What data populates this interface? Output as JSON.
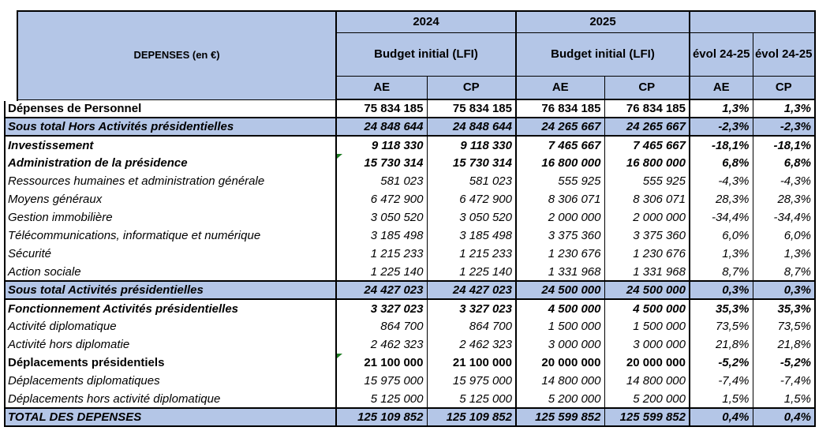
{
  "header": {
    "col_label": "DEPENSES (en €)",
    "year_2024": "2024",
    "year_2025": "2025",
    "budget_2024": "Budget initial (LFI)",
    "budget_2025": "Budget initial (LFI)",
    "evol_ae": "évol 24-25",
    "evol_cp": "évol 24-25",
    "sub": [
      "AE",
      "CP",
      "AE",
      "CP",
      "AE",
      "CP"
    ]
  },
  "rows": [
    {
      "label": "Dépenses de Personnel",
      "style": "bold",
      "flag": false,
      "values": [
        "75 834 185",
        "75 834 185",
        "76 834 185",
        "76 834 185",
        "1,3%",
        "1,3%"
      ]
    },
    {
      "label": "Sous total Hors Activités présidentielles",
      "style": "subtotal",
      "flag": false,
      "values": [
        "24 848 644",
        "24 848 644",
        "24 265 667",
        "24 265 667",
        "-2,3%",
        "-2,3%"
      ]
    },
    {
      "label": "Investissement",
      "style": "bold-italic",
      "flag": false,
      "values": [
        "9 118 330",
        "9 118 330",
        "7 465 667",
        "7 465 667",
        "-18,1%",
        "-18,1%"
      ]
    },
    {
      "label": "Administration de la présidence",
      "style": "bold-italic",
      "flag": true,
      "values": [
        "15 730 314",
        "15 730 314",
        "16 800 000",
        "16 800 000",
        "6,8%",
        "6,8%"
      ]
    },
    {
      "label": "Ressources humaines et administration générale",
      "style": "italic",
      "flag": false,
      "values": [
        "581 023",
        "581 023",
        "555 925",
        "555 925",
        "-4,3%",
        "-4,3%"
      ]
    },
    {
      "label": "Moyens généraux",
      "style": "italic",
      "flag": false,
      "values": [
        "6 472 900",
        "6 472 900",
        "8 306 071",
        "8 306 071",
        "28,3%",
        "28,3%"
      ]
    },
    {
      "label": "Gestion immobilière",
      "style": "italic",
      "flag": false,
      "values": [
        "3 050 520",
        "3 050 520",
        "2 000 000",
        "2 000 000",
        "-34,4%",
        "-34,4%"
      ]
    },
    {
      "label": "Télécommunications, informatique et numérique",
      "style": "italic",
      "flag": false,
      "values": [
        "3 185 498",
        "3 185 498",
        "3 375 360",
        "3 375 360",
        "6,0%",
        "6,0%"
      ]
    },
    {
      "label": "Sécurité",
      "style": "italic",
      "flag": false,
      "values": [
        "1 215 233",
        "1 215 233",
        "1 230 676",
        "1 230 676",
        "1,3%",
        "1,3%"
      ]
    },
    {
      "label": "Action sociale",
      "style": "italic",
      "flag": false,
      "values": [
        "1 225 140",
        "1 225 140",
        "1 331 968",
        "1 331 968",
        "8,7%",
        "8,7%"
      ]
    },
    {
      "label": "Sous total Activités présidentielles",
      "style": "subtotal",
      "flag": false,
      "values": [
        "24 427 023",
        "24 427 023",
        "24 500 000",
        "24 500 000",
        "0,3%",
        "0,3%"
      ]
    },
    {
      "label": "Fonctionnement Activités présidentielles",
      "style": "bold-italic",
      "flag": false,
      "values": [
        "3 327 023",
        "3 327 023",
        "4 500 000",
        "4 500 000",
        "35,3%",
        "35,3%"
      ]
    },
    {
      "label": "Activité diplomatique",
      "style": "italic",
      "flag": false,
      "values": [
        "864 700",
        "864 700",
        "1 500 000",
        "1 500 000",
        "73,5%",
        "73,5%"
      ]
    },
    {
      "label": "Activité hors diplomatie",
      "style": "italic",
      "flag": false,
      "values": [
        "2 462 323",
        "2 462 323",
        "3 000 000",
        "3 000 000",
        "21,8%",
        "21,8%"
      ]
    },
    {
      "label": "Déplacements présidentiels",
      "style": "bold",
      "flag": true,
      "values": [
        "21 100 000",
        "21 100 000",
        "20 000 000",
        "20 000 000",
        "-5,2%",
        "-5,2%"
      ]
    },
    {
      "label": "Déplacements diplomatiques",
      "style": "italic",
      "flag": false,
      "values": [
        "15 975 000",
        "15 975 000",
        "14 800 000",
        "14 800 000",
        "-7,4%",
        "-7,4%"
      ]
    },
    {
      "label": "Déplacements hors activité diplomatique",
      "style": "italic",
      "flag": false,
      "values": [
        "5 125 000",
        "5 125 000",
        "5 200 000",
        "5 200 000",
        "1,5%",
        "1,5%"
      ]
    },
    {
      "label": "TOTAL DES DEPENSES",
      "style": "total",
      "flag": false,
      "values": [
        "125 109 852",
        "125 109 852",
        "125 599 852",
        "125 599 852",
        "0,4%",
        "0,4%"
      ]
    }
  ],
  "colors": {
    "header_blue": "#B4C6E7",
    "flag_green": "#1E7D23",
    "border_black": "#000000"
  }
}
